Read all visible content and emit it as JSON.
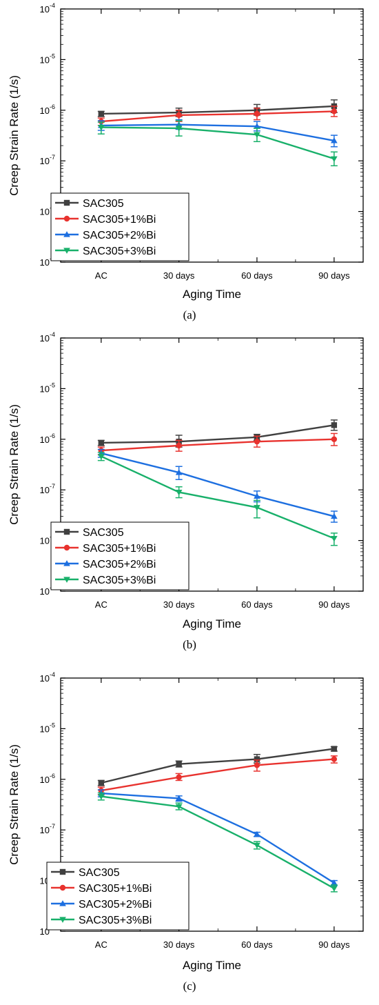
{
  "chart_data": [
    {
      "type": "line",
      "panel_label": "(a)",
      "xlabel": "Aging Time",
      "ylabel": "Creep Strain Rate (1/s)",
      "yscale": "log",
      "ylim": [
        1e-09,
        0.0001
      ],
      "categories": [
        "AC",
        "30 days",
        "60 days",
        "90 days"
      ],
      "legend_position": "bottom-left",
      "series": [
        {
          "name": "SAC305",
          "color": "#404040",
          "marker": "square",
          "values": [
            8.5e-07,
            9e-07,
            1e-06,
            1.2e-06
          ],
          "error_high": [
            9.5e-07,
            1.1e-06,
            1.3e-06,
            1.6e-06
          ],
          "error_low": [
            7.5e-07,
            7.5e-07,
            8e-07,
            9e-07
          ]
        },
        {
          "name": "SAC305+1%Bi",
          "color": "#e8322e",
          "marker": "circle",
          "values": [
            6e-07,
            8e-07,
            8.5e-07,
            9.5e-07
          ],
          "error_high": [
            7e-07,
            1e-06,
            1.1e-06,
            1.2e-06
          ],
          "error_low": [
            5e-07,
            6e-07,
            6.5e-07,
            7.5e-07
          ]
        },
        {
          "name": "SAC305+2%Bi",
          "color": "#1d6fe0",
          "marker": "triangle-up",
          "values": [
            5e-07,
            5.2e-07,
            4.8e-07,
            2.5e-07
          ],
          "error_high": [
            6.2e-07,
            6.5e-07,
            6e-07,
            3.2e-07
          ],
          "error_low": [
            4e-07,
            4.2e-07,
            3.9e-07,
            1.9e-07
          ]
        },
        {
          "name": "SAC305+3%Bi",
          "color": "#18b06a",
          "marker": "triangle-down",
          "values": [
            4.6e-07,
            4.4e-07,
            3.3e-07,
            1.1e-07
          ],
          "error_high": [
            5.8e-07,
            6.2e-07,
            4.4e-07,
            1.5e-07
          ],
          "error_low": [
            3.4e-07,
            3.1e-07,
            2.4e-07,
            8e-08
          ]
        }
      ]
    },
    {
      "type": "line",
      "panel_label": "(b)",
      "xlabel": "Aging Time",
      "ylabel": "Creep Strain Rate (1/s)",
      "yscale": "log",
      "ylim": [
        1e-09,
        0.0001
      ],
      "categories": [
        "AC",
        "30 days",
        "60 days",
        "90 days"
      ],
      "legend_position": "bottom-left",
      "series": [
        {
          "name": "SAC305",
          "color": "#404040",
          "marker": "square",
          "values": [
            8.5e-07,
            9e-07,
            1.1e-06,
            1.9e-06
          ],
          "error_high": [
            9.5e-07,
            1.2e-06,
            1.25e-06,
            2.4e-06
          ],
          "error_low": [
            7.5e-07,
            7e-07,
            9.5e-07,
            1.5e-06
          ]
        },
        {
          "name": "SAC305+1%Bi",
          "color": "#e8322e",
          "marker": "circle",
          "values": [
            6e-07,
            7.5e-07,
            9e-07,
            1e-06
          ],
          "error_high": [
            7e-07,
            9.5e-07,
            1.15e-06,
            1.3e-06
          ],
          "error_low": [
            5e-07,
            5.8e-07,
            7e-07,
            7.5e-07
          ]
        },
        {
          "name": "SAC305+2%Bi",
          "color": "#1d6fe0",
          "marker": "triangle-up",
          "values": [
            5.3e-07,
            2.2e-07,
            7.5e-08,
            3e-08
          ],
          "error_high": [
            6.3e-07,
            2.9e-07,
            9.5e-08,
            3.8e-08
          ],
          "error_low": [
            4.4e-07,
            1.6e-07,
            5.8e-08,
            2.3e-08
          ]
        },
        {
          "name": "SAC305+3%Bi",
          "color": "#18b06a",
          "marker": "triangle-down",
          "values": [
            4.6e-07,
            9e-08,
            4.5e-08,
            1.1e-08
          ],
          "error_high": [
            5.5e-07,
            1.15e-07,
            6.2e-08,
            1.4e-08
          ],
          "error_low": [
            3.8e-07,
            7e-08,
            2.8e-08,
            8e-09
          ]
        }
      ]
    },
    {
      "type": "line",
      "panel_label": "(c)",
      "xlabel": "Aging Time",
      "ylabel": "Creep Strain Rate (1/s)",
      "yscale": "log",
      "ylim": [
        1e-09,
        0.0001
      ],
      "categories": [
        "AC",
        "30 days",
        "60 days",
        "90 days"
      ],
      "legend_position": "bottom-left",
      "series": [
        {
          "name": "SAC305",
          "color": "#404040",
          "marker": "square",
          "values": [
            8.5e-07,
            2e-06,
            2.5e-06,
            4e-06
          ],
          "error_high": [
            9.5e-07,
            2.3e-06,
            3.1e-06,
            4.4e-06
          ],
          "error_low": [
            7.5e-07,
            1.75e-06,
            2.1e-06,
            3.6e-06
          ]
        },
        {
          "name": "SAC305+1%Bi",
          "color": "#e8322e",
          "marker": "circle",
          "values": [
            6e-07,
            1.1e-06,
            1.9e-06,
            2.5e-06
          ],
          "error_high": [
            7e-07,
            1.3e-06,
            2.4e-06,
            2.9e-06
          ],
          "error_low": [
            5e-07,
            9.5e-07,
            1.45e-06,
            2.1e-06
          ]
        },
        {
          "name": "SAC305+2%Bi",
          "color": "#1d6fe0",
          "marker": "triangle-up",
          "values": [
            5.3e-07,
            4.2e-07,
            8.2e-08,
            9e-09
          ],
          "error_high": [
            6.2e-07,
            4.7e-07,
            9e-08,
            1e-08
          ],
          "error_low": [
            4.5e-07,
            3.7e-07,
            7.4e-08,
            8e-09
          ]
        },
        {
          "name": "SAC305+3%Bi",
          "color": "#18b06a",
          "marker": "triangle-down",
          "values": [
            4.6e-07,
            2.9e-07,
            5e-08,
            7e-09
          ],
          "error_high": [
            5.4e-07,
            3.4e-07,
            5.9e-08,
            8.2e-09
          ],
          "error_low": [
            3.9e-07,
            2.5e-07,
            4.2e-08,
            6e-09
          ]
        }
      ]
    }
  ]
}
